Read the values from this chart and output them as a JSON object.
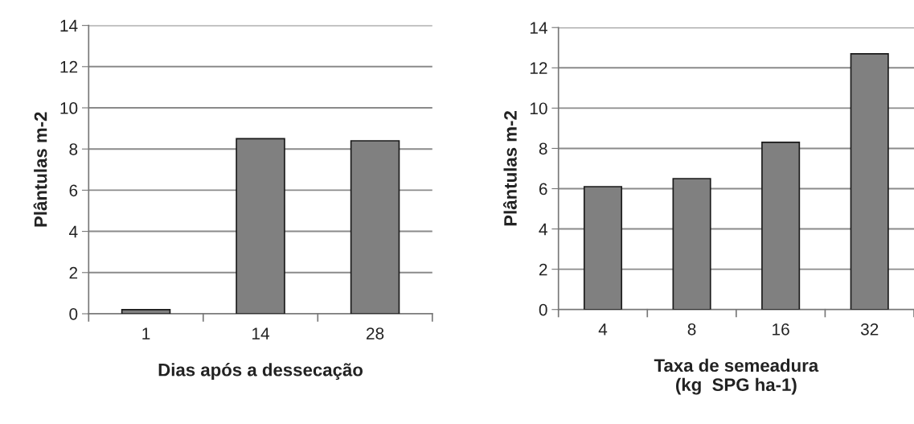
{
  "chart_data": [
    {
      "type": "bar",
      "xlabel": "Dias após a dessecação",
      "ylabel": "Plântulas m-2",
      "categories": [
        "1",
        "14",
        "28"
      ],
      "values": [
        0.2,
        8.5,
        8.4
      ],
      "color": "#808080",
      "ylim": [
        0,
        14
      ],
      "yticks": [
        0,
        2,
        4,
        6,
        8,
        10,
        12,
        14
      ],
      "grid": "y"
    },
    {
      "type": "bar",
      "xlabel": "Taxa de semeadura\n(kg  SPG ha-1)",
      "ylabel": "Plântulas m-2",
      "categories": [
        "4",
        "8",
        "16",
        "32"
      ],
      "values": [
        6.1,
        6.5,
        8.3,
        12.7
      ],
      "color": "#808080",
      "ylim": [
        0,
        14
      ],
      "yticks": [
        0,
        2,
        4,
        6,
        8,
        10,
        12,
        14
      ],
      "grid": "y"
    }
  ]
}
